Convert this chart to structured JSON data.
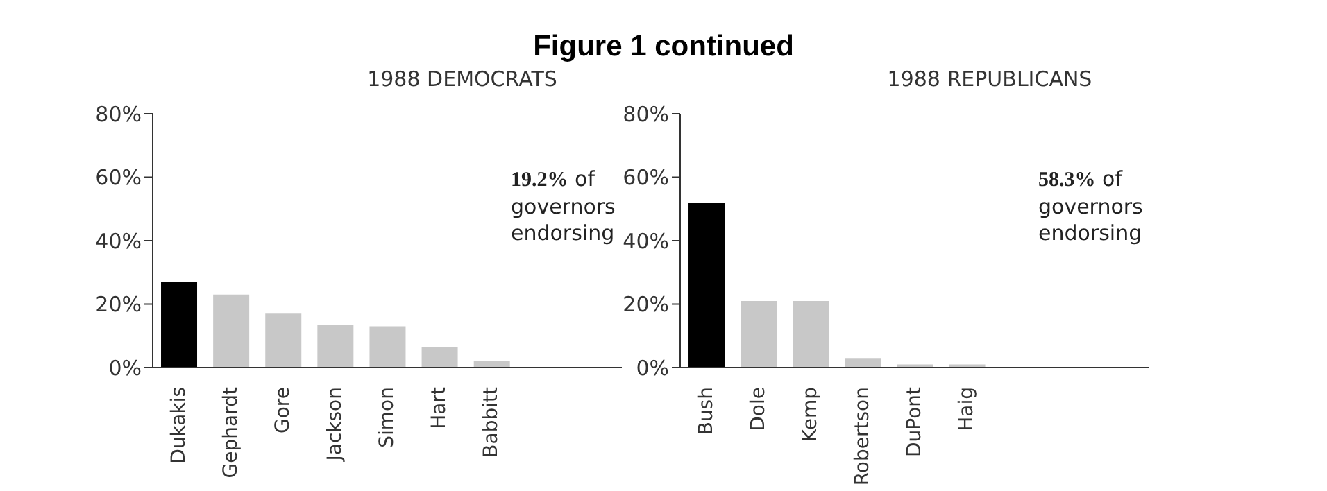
{
  "chart_data": [
    {
      "type": "bar",
      "title": "Figure 1 continued",
      "subtitle": "1988 DEMOCRATS",
      "categories": [
        "Dukakis",
        "Gephardt",
        "Gore",
        "Jackson",
        "Simon",
        "Hart",
        "Babbitt",
        null,
        null
      ],
      "values": [
        27,
        23,
        17,
        13.5,
        13,
        6.5,
        2,
        null,
        null
      ],
      "colors": [
        "#000000",
        "#c8c8c8",
        "#c8c8c8",
        "#c8c8c8",
        "#c8c8c8",
        "#c8c8c8",
        "#c8c8c8",
        "#c8c8c8",
        "#c8c8c8"
      ],
      "ylim": [
        0,
        80
      ],
      "yticks": [
        {
          "value": 0,
          "label": "0%"
        },
        {
          "value": 20,
          "label": "20%"
        },
        {
          "value": 40,
          "label": "40%"
        },
        {
          "value": 60,
          "label": "60%"
        },
        {
          "value": 80,
          "label": "80%"
        }
      ],
      "annotations": [
        "19.2% of governors endorsing"
      ]
    },
    {
      "type": "bar",
      "subtitle": "1988 REPUBLICANS",
      "categories": [
        "Bush",
        "Dole",
        "Kemp",
        "Robertson",
        "DuPont",
        "Haig",
        null,
        null,
        null
      ],
      "values": [
        52,
        21,
        21,
        3,
        1,
        1,
        null,
        null,
        null
      ],
      "colors": [
        "#000000",
        "#c8c8c8",
        "#c8c8c8",
        "#c8c8c8",
        "#c8c8c8",
        "#c8c8c8",
        "#c8c8c8",
        "#c8c8c8",
        "#c8c8c8"
      ],
      "ylim": [
        0,
        80
      ],
      "yticks": [
        {
          "value": 0,
          "label": "0%"
        },
        {
          "value": 20,
          "label": "20%"
        },
        {
          "value": 40,
          "label": "40%"
        },
        {
          "value": 60,
          "label": "60%"
        },
        {
          "value": 80,
          "label": "80%"
        }
      ],
      "annotations": [
        "58.3% of governors endorsing"
      ]
    }
  ]
}
